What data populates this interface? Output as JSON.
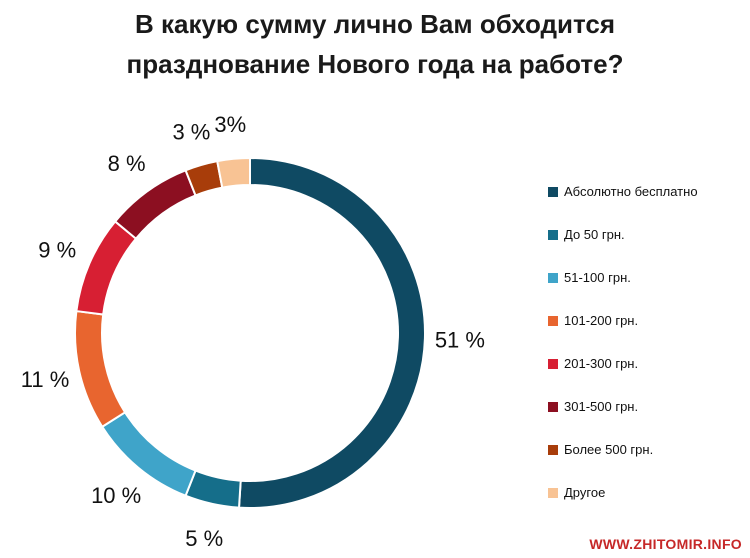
{
  "title_line1": "В какую сумму лично Вам обходится",
  "title_line2": "празднование Нового года на работе?",
  "chart_data": {
    "type": "pie",
    "donut": true,
    "title": "В какую сумму лично Вам обходится празднование Нового года на работе?",
    "legend_position": "right",
    "slices": [
      {
        "label": "Абсолютно бесплатно",
        "value": 51,
        "value_label": "51 %",
        "color": "#0f4a63"
      },
      {
        "label": "До 50 грн.",
        "value": 5,
        "value_label": "5 %",
        "color": "#156e8a"
      },
      {
        "label": "51-100 грн.",
        "value": 10,
        "value_label": "10 %",
        "color": "#3fa4c9"
      },
      {
        "label": "101-200 грн.",
        "value": 11,
        "value_label": "11 %",
        "color": "#e8652f"
      },
      {
        "label": "201-300 грн.",
        "value": 9,
        "value_label": "9 %",
        "color": "#d71f33"
      },
      {
        "label": "301-500 грн.",
        "value": 8,
        "value_label": "8 %",
        "color": "#8c0f21"
      },
      {
        "label": "Более 500 грн.",
        "value": 3,
        "value_label": "3 %",
        "color": "#a83d0a"
      },
      {
        "label": "Другое",
        "value": 3,
        "value_label": "3%",
        "color": "#f8c394"
      }
    ]
  },
  "watermark": "WWW.ZHITOMIR.INFO"
}
